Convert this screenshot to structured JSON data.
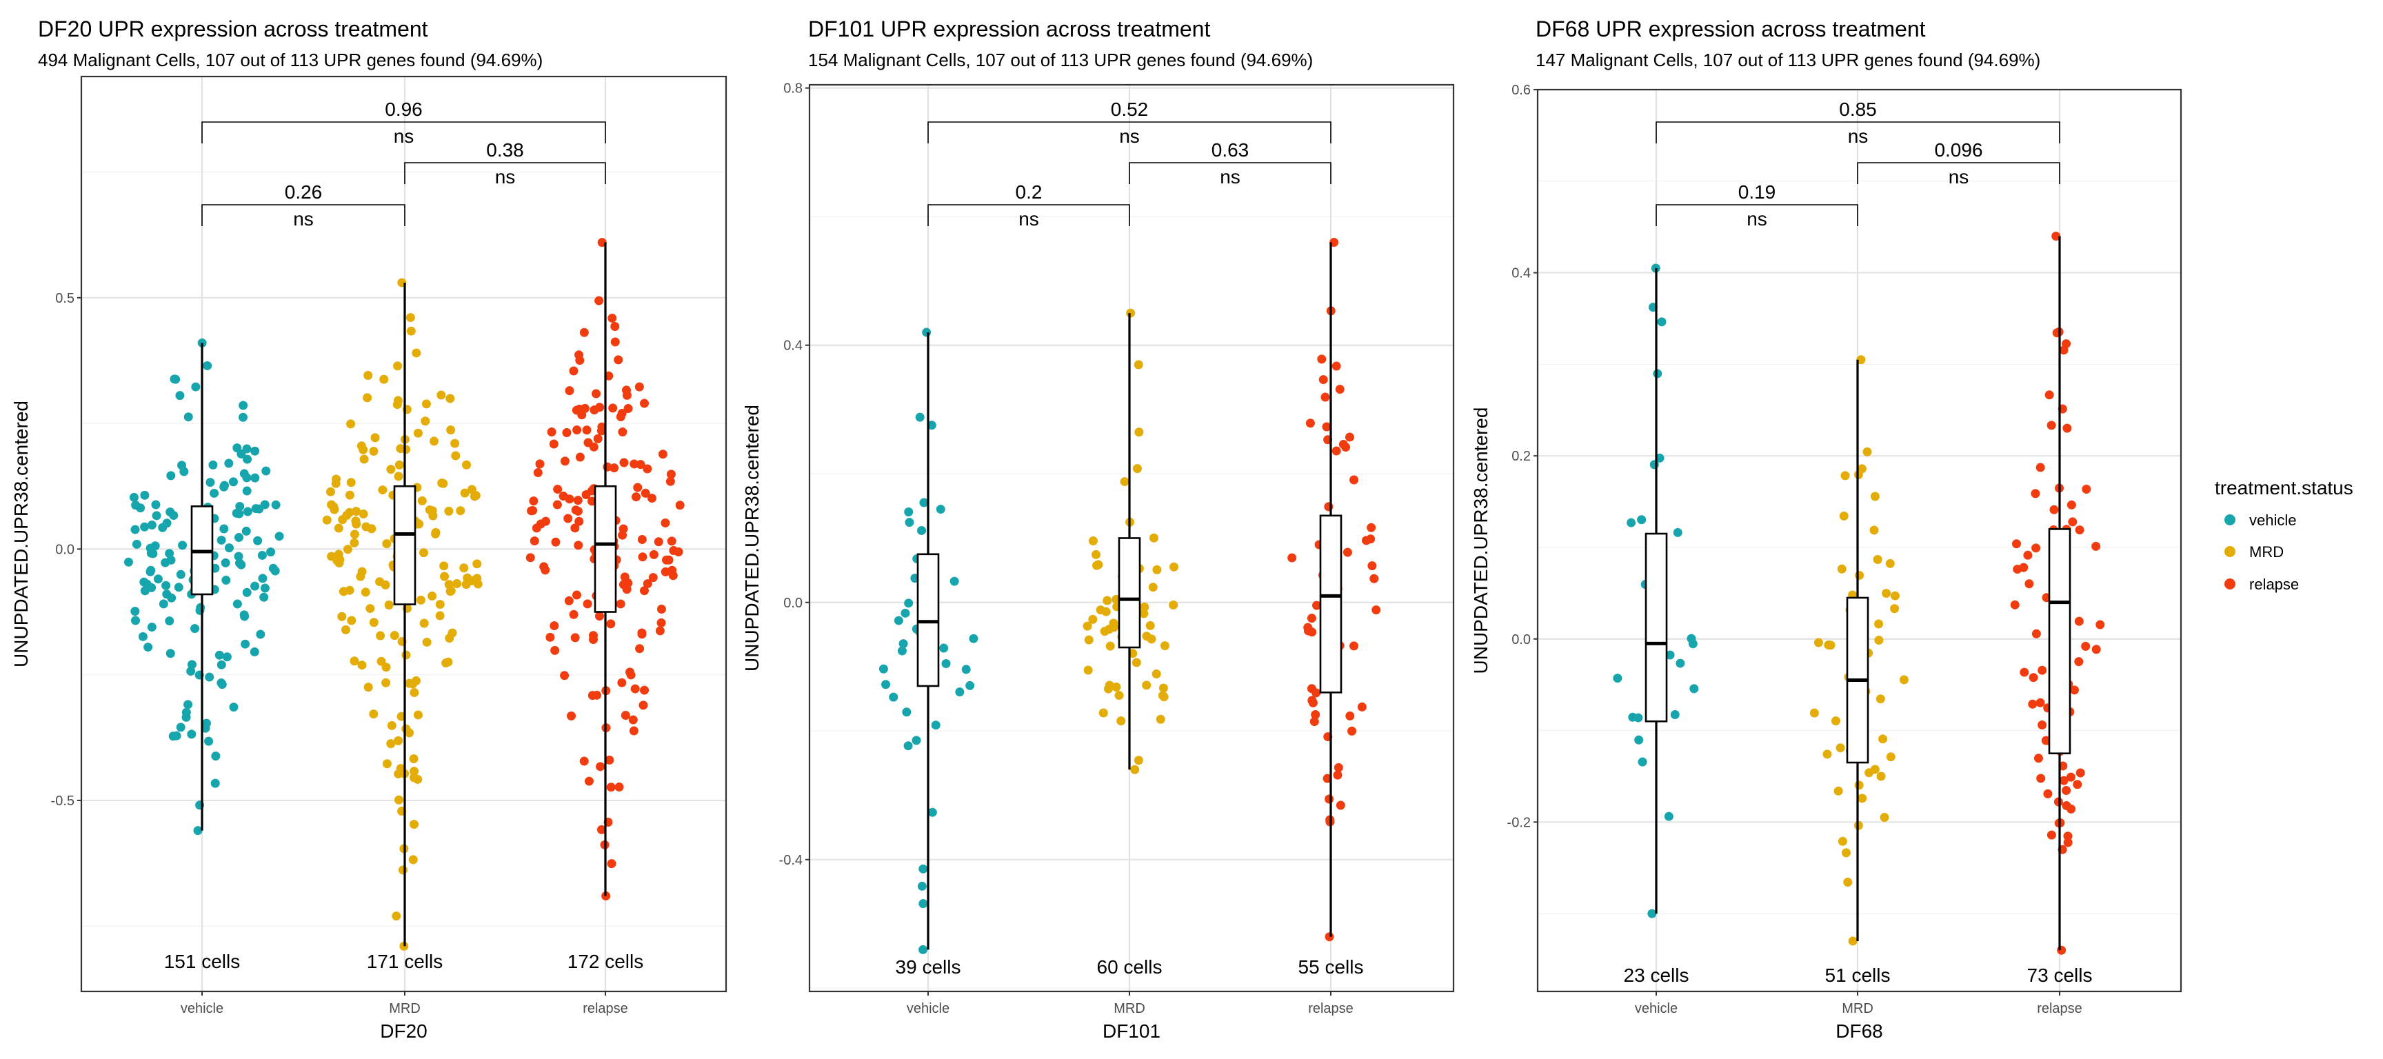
{
  "colors": {
    "vehicle": "#17a5ad",
    "MRD": "#e3ac07",
    "relapse": "#f03c0f"
  },
  "legend": {
    "title": "treatment.status",
    "items": [
      {
        "key": "vehicle",
        "label": "vehicle"
      },
      {
        "key": "MRD",
        "label": "MRD"
      },
      {
        "key": "relapse",
        "label": "relapse"
      }
    ]
  },
  "chart_data": [
    {
      "type": "box",
      "title": "DF20 UPR expression across treatment",
      "subtitle": "494 Malignant Cells, 107 out of 113 UPR genes found (94.69%)",
      "xlabel": "DF20",
      "ylabel": "UNUPDATED.UPR38.centered",
      "ylim": [
        -0.88,
        0.94
      ],
      "yticks": [
        -0.5,
        0.0,
        0.5
      ],
      "ytick_labels": [
        "-0.5",
        "0.0",
        "0.5"
      ],
      "categories": [
        "vehicle",
        "MRD",
        "relapse"
      ],
      "groups": [
        {
          "key": "vehicle",
          "n": 151,
          "count_label": "151 cells",
          "min": -0.56,
          "max": 0.41,
          "q1": -0.09,
          "median": -0.005,
          "q3": 0.085
        },
        {
          "key": "MRD",
          "n": 171,
          "count_label": "171 cells",
          "min": -0.79,
          "max": 0.53,
          "q1": -0.11,
          "median": 0.03,
          "q3": 0.125
        },
        {
          "key": "relapse",
          "n": 172,
          "count_label": "172 cells",
          "min": -0.69,
          "max": 0.61,
          "q1": -0.125,
          "median": 0.01,
          "q3": 0.125
        }
      ],
      "comparisons": [
        {
          "from": 0,
          "to": 1,
          "p": "0.26",
          "sig": "ns",
          "level": 0
        },
        {
          "from": 1,
          "to": 2,
          "p": "0.38",
          "sig": "ns",
          "level": 1
        },
        {
          "from": 0,
          "to": 2,
          "p": "0.96",
          "sig": "ns",
          "level": 2
        }
      ]
    },
    {
      "type": "box",
      "title": "DF101 UPR expression across treatment",
      "subtitle": "154 Malignant Cells, 107 out of 113 UPR genes found (94.69%)",
      "xlabel": "DF101",
      "ylabel": "UNUPDATED.UPR38.centered",
      "ylim": [
        -0.605,
        0.805
      ],
      "yticks": [
        -0.4,
        0.0,
        0.4,
        0.8
      ],
      "ytick_labels": [
        "-0.4",
        "0.0",
        "0.4",
        "0.8"
      ],
      "categories": [
        "vehicle",
        "MRD",
        "relapse"
      ],
      "groups": [
        {
          "key": "vehicle",
          "n": 39,
          "count_label": "39 cells",
          "min": -0.54,
          "max": 0.42,
          "q1": -0.13,
          "median": -0.03,
          "q3": 0.075
        },
        {
          "key": "MRD",
          "n": 60,
          "count_label": "60 cells",
          "min": -0.26,
          "max": 0.45,
          "q1": -0.07,
          "median": 0.005,
          "q3": 0.1
        },
        {
          "key": "relapse",
          "n": 55,
          "count_label": "55 cells",
          "min": -0.52,
          "max": 0.56,
          "q1": -0.14,
          "median": 0.01,
          "q3": 0.135
        }
      ],
      "comparisons": [
        {
          "from": 0,
          "to": 1,
          "p": "0.2",
          "sig": "ns",
          "level": 0
        },
        {
          "from": 1,
          "to": 2,
          "p": "0.63",
          "sig": "ns",
          "level": 1
        },
        {
          "from": 0,
          "to": 2,
          "p": "0.52",
          "sig": "ns",
          "level": 2
        }
      ]
    },
    {
      "type": "box",
      "title": "DF68 UPR expression across treatment",
      "subtitle": "147 Malignant Cells, 107 out of 113 UPR genes found (94.69%)",
      "xlabel": "DF68",
      "ylabel": "UNUPDATED.UPR38.centered",
      "ylim": [
        -0.385,
        0.6
      ],
      "yticks": [
        -0.2,
        0.0,
        0.2,
        0.4,
        0.6
      ],
      "ytick_labels": [
        "-0.2",
        "0.0",
        "0.2",
        "0.4",
        "0.6"
      ],
      "categories": [
        "vehicle",
        "MRD",
        "relapse"
      ],
      "groups": [
        {
          "key": "vehicle",
          "n": 23,
          "count_label": "23 cells",
          "min": -0.3,
          "max": 0.405,
          "q1": -0.09,
          "median": -0.005,
          "q3": 0.115
        },
        {
          "key": "MRD",
          "n": 51,
          "count_label": "51 cells",
          "min": -0.33,
          "max": 0.305,
          "q1": -0.135,
          "median": -0.045,
          "q3": 0.045
        },
        {
          "key": "relapse",
          "n": 73,
          "count_label": "73 cells",
          "min": -0.34,
          "max": 0.44,
          "q1": -0.125,
          "median": 0.04,
          "q3": 0.12
        }
      ],
      "comparisons": [
        {
          "from": 0,
          "to": 1,
          "p": "0.19",
          "sig": "ns",
          "level": 0
        },
        {
          "from": 1,
          "to": 2,
          "p": "0.096",
          "sig": "ns",
          "level": 1
        },
        {
          "from": 0,
          "to": 2,
          "p": "0.85",
          "sig": "ns",
          "level": 2
        }
      ]
    }
  ]
}
